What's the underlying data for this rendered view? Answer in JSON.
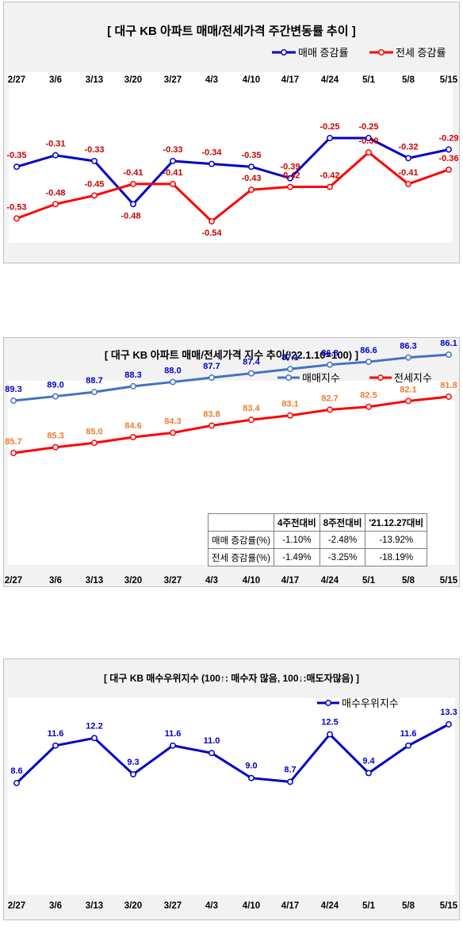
{
  "charts": [
    {
      "title": "[  대구  KB 아파트 매매/전세가격 주간변동률 추이  ]",
      "legend": [
        "매매 증감률",
        "전세 증감률"
      ]
    },
    {
      "title": "[  대구  KB 아파트 매매/전세가격 지수 추이('22.1.10=100)  ]",
      "legend": [
        "매매지수",
        "전세지수"
      ],
      "table": {
        "headers": [
          "",
          "4주전대비",
          "8주전대비",
          "'21.12.27대비"
        ],
        "rows": [
          [
            "매매 증감률(%)",
            "-1.10%",
            "-2.48%",
            "-13.92%"
          ],
          [
            "전세 증감률(%)",
            "-1.49%",
            "-3.25%",
            "-18.19%"
          ]
        ]
      }
    },
    {
      "title": "[  대구  KB 매수우위지수 (100↑: 매수자 많음, 100↓:매도자많음)  ]",
      "legend": [
        "매수우위지수"
      ]
    }
  ],
  "chart_data": [
    {
      "type": "line",
      "title": "[ 대구 KB 아파트 매매/전세가격 주간변동률 추이 ]",
      "categories": [
        "2/27",
        "3/6",
        "3/13",
        "3/20",
        "3/27",
        "4/3",
        "4/10",
        "4/17",
        "4/24",
        "5/1",
        "5/8",
        "5/15"
      ],
      "series": [
        {
          "name": "매매 증감률",
          "color": "#0000cc",
          "label_color": "#cc0000",
          "values": [
            -0.35,
            -0.31,
            -0.33,
            -0.48,
            -0.33,
            -0.34,
            -0.35,
            -0.39,
            -0.25,
            -0.25,
            -0.32,
            -0.29
          ]
        },
        {
          "name": "전세 증감률",
          "color": "#ff0000",
          "label_color": "#cc0000",
          "values": [
            -0.53,
            -0.48,
            -0.45,
            -0.41,
            -0.41,
            -0.54,
            -0.43,
            -0.42,
            -0.42,
            -0.3,
            -0.41,
            -0.36
          ]
        }
      ],
      "ylim": [
        -0.56,
        -0.2
      ],
      "legend_position": "top-right",
      "grid": false
    },
    {
      "type": "line",
      "title": "[ 대구 KB 아파트 매매/전세가격 지수 추이('22.1.10=100) ]",
      "categories": [
        "2/27",
        "3/6",
        "3/13",
        "3/20",
        "3/27",
        "4/3",
        "4/10",
        "4/17",
        "4/24",
        "5/1",
        "5/8",
        "5/15"
      ],
      "series": [
        {
          "name": "매매지수",
          "color": "#4472c4",
          "label_color": "#0000cc",
          "values": [
            89.3,
            89.0,
            88.7,
            88.3,
            88.0,
            87.7,
            87.4,
            87.1,
            86.8,
            86.6,
            86.3,
            86.1
          ]
        },
        {
          "name": "전세지수",
          "color": "#ff0000",
          "label_color": "#ed7d31",
          "values": [
            85.7,
            85.3,
            85.0,
            84.6,
            84.3,
            83.8,
            83.4,
            83.1,
            82.7,
            82.5,
            82.1,
            81.8
          ]
        }
      ],
      "ylim": [
        75,
        90
      ],
      "legend_position": "top-right",
      "grid": false
    },
    {
      "type": "line",
      "title": "[ 대구 KB 매수우위지수 (100↑: 매수자 많음, 100↓:매도자많음) ]",
      "categories": [
        "2/27",
        "3/6",
        "3/13",
        "3/20",
        "3/27",
        "4/3",
        "4/10",
        "4/17",
        "4/24",
        "5/1",
        "5/8",
        "5/15"
      ],
      "series": [
        {
          "name": "매수우위지수",
          "color": "#0000cc",
          "label_color": "#0000cc",
          "values": [
            8.6,
            11.6,
            12.2,
            9.3,
            11.6,
            11.0,
            9.0,
            8.7,
            12.5,
            9.4,
            11.6,
            13.3
          ]
        }
      ],
      "ylim": [
        0,
        15
      ],
      "legend_position": "top-right",
      "grid": false
    }
  ]
}
